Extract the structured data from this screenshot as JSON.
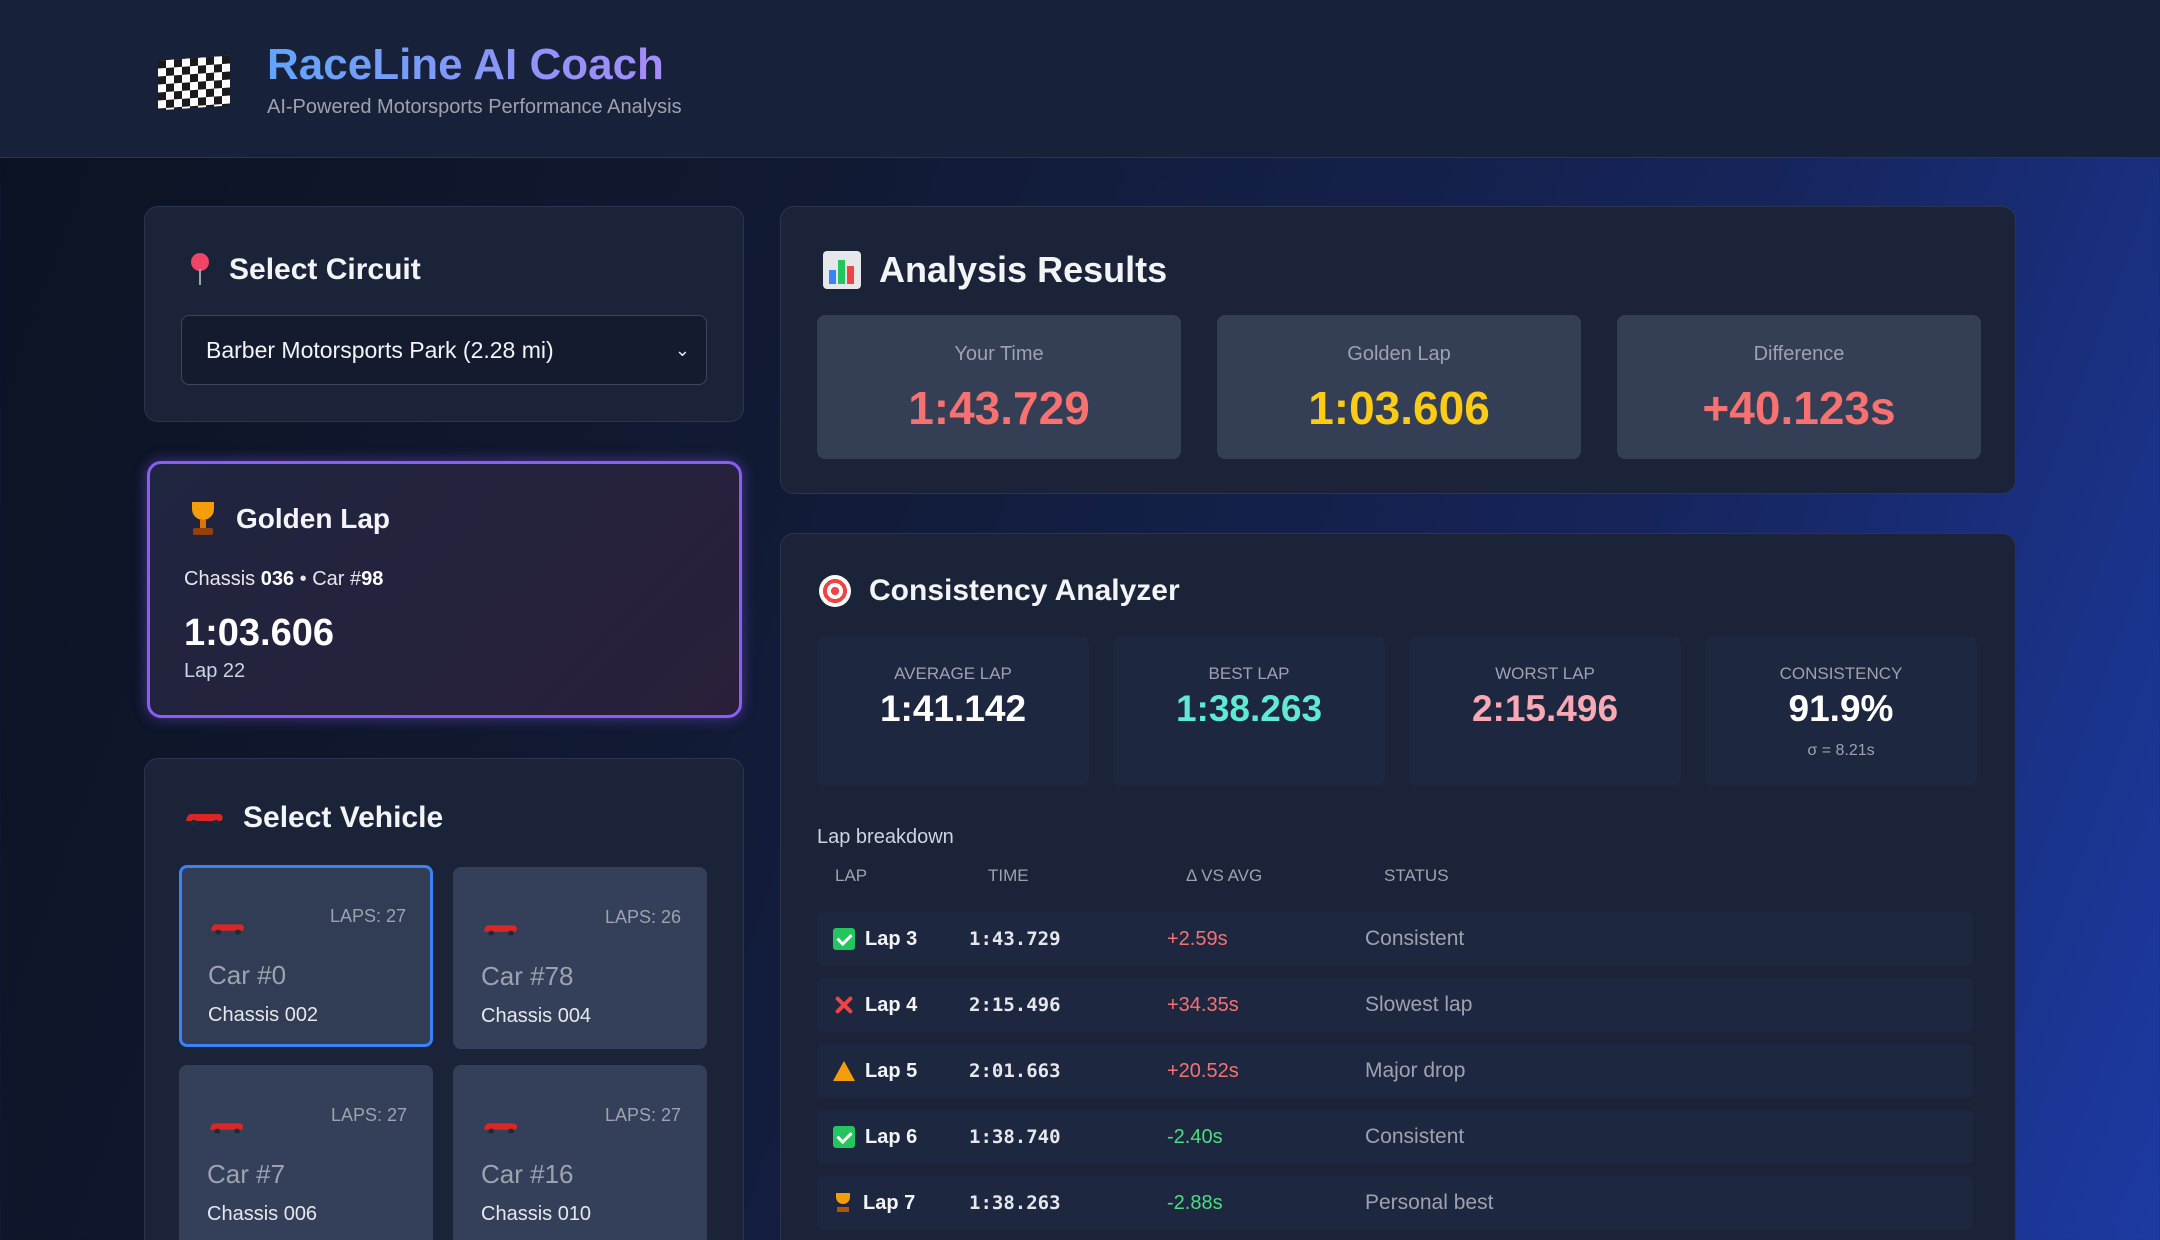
{
  "app": {
    "title": "RaceLine AI Coach",
    "subtitle": "AI-Powered Motorsports Performance Analysis",
    "logo_icon": "checkered-flag-icon"
  },
  "circuit": {
    "title": "Select Circuit",
    "icon": "map-pin-icon",
    "selected": "Barber Motorsports Park (2.28 mi)"
  },
  "golden_lap": {
    "title": "Golden Lap",
    "icon": "trophy-icon",
    "chassis_prefix": "Chassis ",
    "chassis": "036",
    "car_prefix": " • Car #",
    "car": "98",
    "time": "1:03.606",
    "lap": "Lap 22"
  },
  "vehicles": {
    "title": "Select Vehicle",
    "icon": "race-car-icon",
    "items": [
      {
        "laps": "LAPS: 27",
        "name": "Car #0",
        "chassis": "Chassis 002",
        "selected": true
      },
      {
        "laps": "LAPS: 26",
        "name": "Car #78",
        "chassis": "Chassis 004",
        "selected": false
      },
      {
        "laps": "LAPS: 27",
        "name": "Car #7",
        "chassis": "Chassis 006",
        "selected": false
      },
      {
        "laps": "LAPS: 27",
        "name": "Car #16",
        "chassis": "Chassis 010",
        "selected": false
      }
    ]
  },
  "analysis": {
    "title": "Analysis Results",
    "icon": "bar-chart-icon",
    "results": [
      {
        "label": "Your Time",
        "value": "1:43.729",
        "color": "#f87171"
      },
      {
        "label": "Golden Lap",
        "value": "1:03.606",
        "color": "#facc15"
      },
      {
        "label": "Difference",
        "value": "+40.123s",
        "color": "#f87171"
      }
    ]
  },
  "consistency": {
    "title": "Consistency Analyzer",
    "icon": "target-icon",
    "stats": [
      {
        "label": "Average Lap",
        "value": "1:41.142",
        "color": "#ffffff",
        "sub": ""
      },
      {
        "label": "Best Lap",
        "value": "1:38.263",
        "color": "#5eead4",
        "sub": ""
      },
      {
        "label": "Worst Lap",
        "value": "2:15.496",
        "color": "#f9a8b4",
        "sub": ""
      },
      {
        "label": "Consistency",
        "value": "91.9%",
        "color": "#ffffff",
        "sub": "σ = 8.21s"
      }
    ],
    "breakdown_title": "Lap breakdown",
    "columns": [
      "Lap",
      "Time",
      "Δ vs Avg",
      "Status"
    ],
    "rows": [
      {
        "icon": "check-icon",
        "lap": "Lap 3",
        "time": "1:43.729",
        "delta": "+2.59s",
        "delta_color": "#f87171",
        "status": "Consistent"
      },
      {
        "icon": "cross-icon",
        "lap": "Lap 4",
        "time": "2:15.496",
        "delta": "+34.35s",
        "delta_color": "#f87171",
        "status": "Slowest lap"
      },
      {
        "icon": "warning-icon",
        "lap": "Lap 5",
        "time": "2:01.663",
        "delta": "+20.52s",
        "delta_color": "#f87171",
        "status": "Major drop"
      },
      {
        "icon": "check-icon",
        "lap": "Lap 6",
        "time": "1:38.740",
        "delta": "-2.40s",
        "delta_color": "#4ade80",
        "status": "Consistent"
      },
      {
        "icon": "trophy-icon",
        "lap": "Lap 7",
        "time": "1:38.263",
        "delta": "-2.88s",
        "delta_color": "#4ade80",
        "status": "Personal best"
      }
    ]
  }
}
